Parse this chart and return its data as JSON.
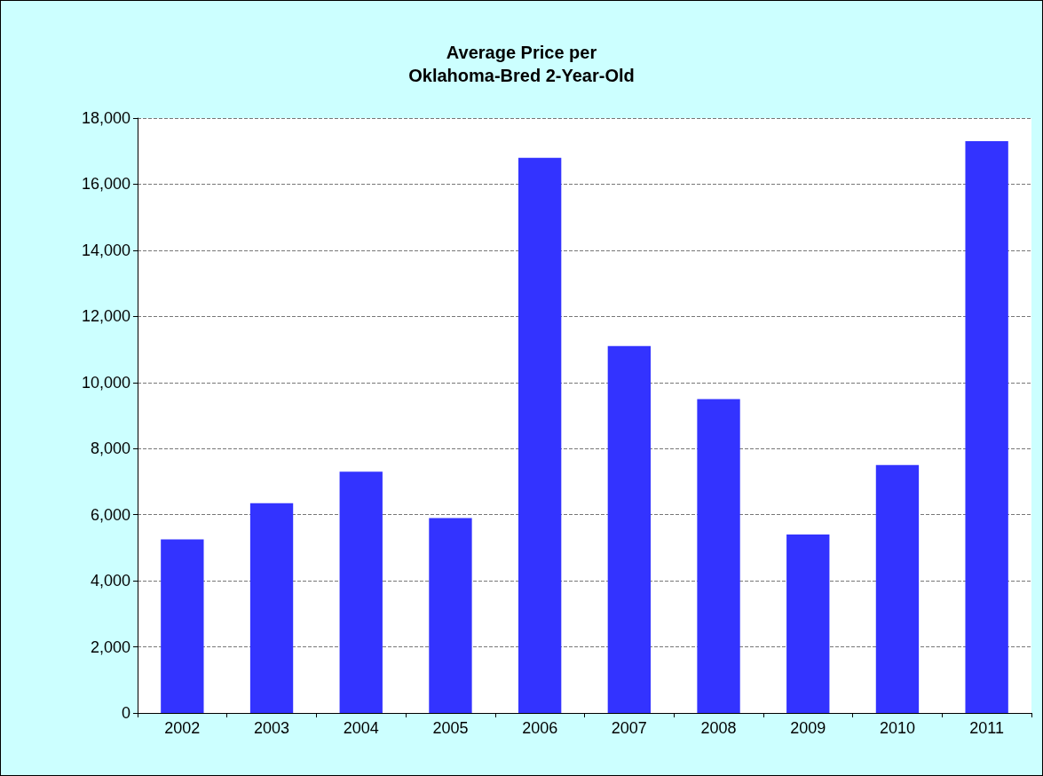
{
  "chart_data": {
    "type": "bar",
    "title": "Average Price per\nOklahoma-Bred 2-Year-Old",
    "categories": [
      "2002",
      "2003",
      "2004",
      "2005",
      "2006",
      "2007",
      "2008",
      "2009",
      "2010",
      "2011"
    ],
    "values": [
      5250,
      6350,
      7300,
      5900,
      16800,
      11100,
      9500,
      5400,
      7500,
      17300
    ],
    "color": "#3333ff",
    "ylim": [
      0,
      18000
    ],
    "yticks": [
      0,
      {
        "value": 2000,
        "label": "2,000"
      },
      {
        "value": 4000,
        "label": "4,000"
      },
      {
        "value": 6000,
        "label": "6,000"
      },
      {
        "value": 8000,
        "label": "8,000"
      },
      {
        "value": 10000,
        "label": "10,000"
      },
      {
        "value": 12000,
        "label": "12,000"
      },
      {
        "value": 14000,
        "label": "14,000"
      },
      {
        "value": 16000,
        "label": "16,000"
      },
      {
        "value": 18000,
        "label": "18,000"
      }
    ],
    "grid": "y"
  }
}
